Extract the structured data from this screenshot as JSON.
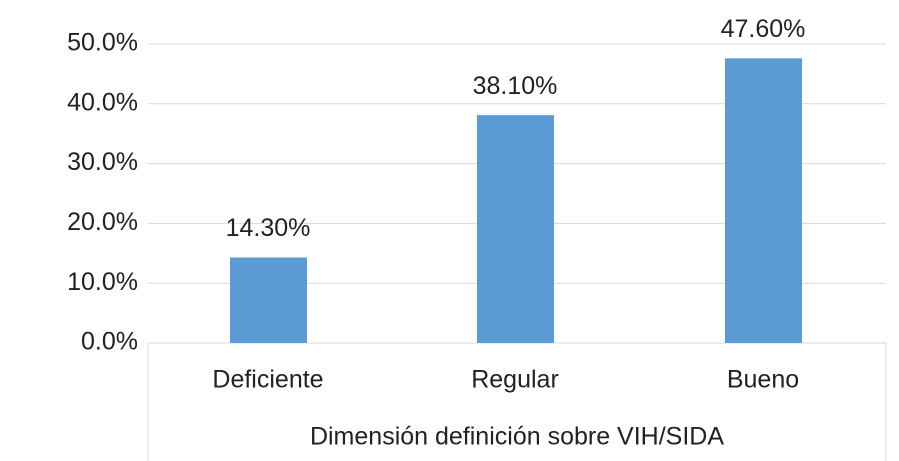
{
  "chart_data": {
    "type": "bar",
    "categories": [
      "Deficiente",
      "Regular",
      "Bueno"
    ],
    "values": [
      14.3,
      38.1,
      47.6
    ],
    "value_labels": [
      "14.30%",
      "38.10%",
      "47.60%"
    ],
    "color": "#5b9bd5",
    "x_label": "Dimensión definición sobre VIH/SIDA",
    "ylim": [
      0,
      50
    ],
    "yticks": [
      {
        "value": 0,
        "label": "0.0%"
      },
      {
        "value": 10,
        "label": "10.0%"
      },
      {
        "value": 20,
        "label": "20.0%"
      },
      {
        "value": 30,
        "label": "30.0%"
      },
      {
        "value": 40,
        "label": "40.0%"
      },
      {
        "value": 50,
        "label": "50.0%"
      }
    ],
    "grid": true
  }
}
